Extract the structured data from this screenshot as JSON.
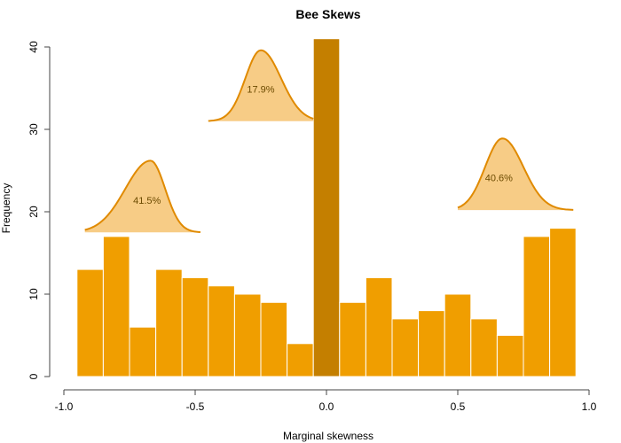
{
  "chart_data": {
    "type": "bar",
    "title": "Bee Skews",
    "xlabel": "Marginal skewness",
    "ylabel": "Frequency",
    "xlim": [
      -1.0,
      1.0
    ],
    "ylim": [
      0,
      40
    ],
    "grid": false,
    "x_ticks": [
      "-1.0",
      "-0.5",
      "0.0",
      "0.5",
      "1.0"
    ],
    "y_ticks": [
      "0",
      "10",
      "20",
      "30",
      "40"
    ],
    "bins": [
      {
        "x0": -0.95,
        "x1": -0.85,
        "value": 13
      },
      {
        "x0": -0.85,
        "x1": -0.75,
        "value": 17
      },
      {
        "x0": -0.75,
        "x1": -0.65,
        "value": 6
      },
      {
        "x0": -0.65,
        "x1": -0.55,
        "value": 13
      },
      {
        "x0": -0.55,
        "x1": -0.45,
        "value": 12
      },
      {
        "x0": -0.45,
        "x1": -0.35,
        "value": 11
      },
      {
        "x0": -0.35,
        "x1": -0.25,
        "value": 10
      },
      {
        "x0": -0.25,
        "x1": -0.15,
        "value": 9
      },
      {
        "x0": -0.15,
        "x1": -0.05,
        "value": 4
      },
      {
        "x0": -0.05,
        "x1": 0.05,
        "value": 41,
        "highlight": true
      },
      {
        "x0": 0.05,
        "x1": 0.15,
        "value": 9
      },
      {
        "x0": 0.15,
        "x1": 0.25,
        "value": 12
      },
      {
        "x0": 0.25,
        "x1": 0.35,
        "value": 7
      },
      {
        "x0": 0.35,
        "x1": 0.45,
        "value": 8
      },
      {
        "x0": 0.45,
        "x1": 0.55,
        "value": 10
      },
      {
        "x0": 0.55,
        "x1": 0.65,
        "value": 7
      },
      {
        "x0": 0.65,
        "x1": 0.75,
        "value": 5
      },
      {
        "x0": 0.75,
        "x1": 0.85,
        "value": 17
      },
      {
        "x0": 0.85,
        "x1": 0.95,
        "value": 18
      }
    ],
    "bar_color": "#f09e00",
    "highlight_color": "#c47f00",
    "annotation_fill": "#f7cc86",
    "annotation_stroke": "#e08a00",
    "annotations": [
      {
        "label": "41.5%",
        "x_start": -0.92,
        "x_end": -0.48,
        "x_peak": -0.67,
        "base_y": 17.5,
        "peak_y": 26.2,
        "skew": "right"
      },
      {
        "label": "17.9%",
        "x_start": -0.45,
        "x_end": -0.05,
        "x_peak": -0.25,
        "base_y": 31.0,
        "peak_y": 39.6,
        "skew": "left"
      },
      {
        "label": "40.6%",
        "x_start": 0.5,
        "x_end": 0.94,
        "x_peak": 0.67,
        "base_y": 20.2,
        "peak_y": 28.9,
        "skew": "right"
      }
    ]
  }
}
